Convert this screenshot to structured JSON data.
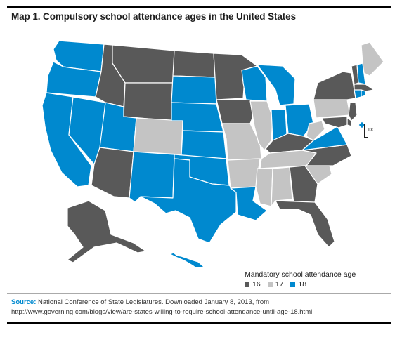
{
  "title": "Map 1. Compulsory school attendance ages in the United States",
  "colors": {
    "16": "#595959",
    "17": "#c4c4c4",
    "18": "#0089cf"
  },
  "dc_label": "DC",
  "legend": {
    "title": "Mandatory school attendance age",
    "items": [
      {
        "value": "16",
        "color": "#595959"
      },
      {
        "value": "17",
        "color": "#c4c4c4"
      },
      {
        "value": "18",
        "color": "#0089cf"
      }
    ]
  },
  "source": {
    "label": "Source:",
    "text": "National Conference of State Legislatures. Downloaded January 8, 2013, from http://www.governing.com/blogs/view/are-states-willing-to-require-school-attendance-until-age-18.html"
  },
  "states": {
    "WA": "18",
    "OR": "18",
    "CA": "18",
    "NV": "18",
    "ID": "16",
    "MT": "16",
    "WY": "16",
    "UT": "18",
    "CO": "17",
    "AZ": "16",
    "NM": "18",
    "ND": "16",
    "SD": "18",
    "NE": "18",
    "KS": "18",
    "OK": "18",
    "TX": "18",
    "MN": "16",
    "IA": "16",
    "MO": "17",
    "AR": "17",
    "LA": "18",
    "WI": "18",
    "IL": "17",
    "MI": "18",
    "IN": "18",
    "OH": "18",
    "KY": "16",
    "TN": "17",
    "MS": "17",
    "AL": "17",
    "GA": "16",
    "FL": "16",
    "SC": "17",
    "NC": "16",
    "VA": "18",
    "WV": "17",
    "PA": "17",
    "NY": "16",
    "VT": "16",
    "NH": "18",
    "ME": "17",
    "MA": "16",
    "CT": "18",
    "RI": "18",
    "NJ": "16",
    "DE": "16",
    "MD": "16",
    "DC": "18",
    "AK": "16",
    "HI": "18"
  }
}
